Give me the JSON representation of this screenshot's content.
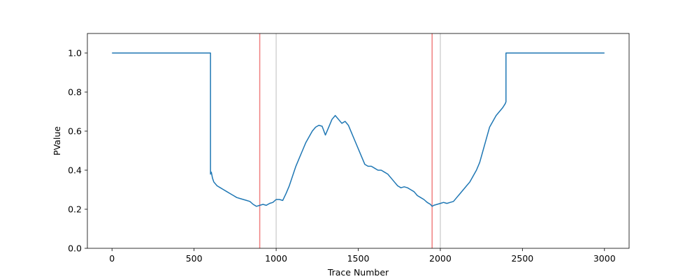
{
  "chart_data": {
    "type": "line",
    "title": "",
    "xlabel": "Trace Number",
    "ylabel": "PValue",
    "xlim": [
      -150,
      3150
    ],
    "ylim": [
      0.0,
      1.1
    ],
    "xticks": [
      0,
      500,
      1000,
      1500,
      2000,
      2500,
      3000
    ],
    "yticks": [
      0.0,
      0.2,
      0.4,
      0.6,
      0.8,
      1.0
    ],
    "xtick_labels": [
      "0",
      "500",
      "1000",
      "1500",
      "2000",
      "2500",
      "3000"
    ],
    "ytick_labels": [
      "0.0",
      "0.2",
      "0.4",
      "0.6",
      "0.8",
      "1.0"
    ],
    "grid": false,
    "colors": {
      "line": "#1f77b4",
      "red_marker": "#f08080",
      "grey_marker": "#d3d3d3"
    },
    "series": [
      {
        "x": [
          0,
          600,
          600,
          605,
          612,
          620,
          640,
          660,
          680,
          700,
          720,
          740,
          760,
          780,
          800,
          820,
          840,
          860,
          880,
          900,
          920,
          940,
          960,
          980,
          1000,
          1020,
          1040,
          1060,
          1080,
          1100,
          1120,
          1140,
          1160,
          1180,
          1200,
          1220,
          1240,
          1260,
          1280,
          1300,
          1320,
          1340,
          1360,
          1380,
          1400,
          1420,
          1440,
          1460,
          1480,
          1500,
          1520,
          1540,
          1560,
          1580,
          1600,
          1620,
          1640,
          1660,
          1680,
          1700,
          1720,
          1740,
          1760,
          1780,
          1800,
          1820,
          1840,
          1860,
          1880,
          1900,
          1920,
          1940,
          1950,
          1960,
          1980,
          2000,
          2020,
          2040,
          2060,
          2080,
          2100,
          2120,
          2140,
          2160,
          2180,
          2200,
          2220,
          2240,
          2260,
          2280,
          2300,
          2320,
          2340,
          2360,
          2380,
          2395,
          2400,
          2400,
          3000
        ],
        "y": [
          1.0,
          1.0,
          0.38,
          0.39,
          0.36,
          0.34,
          0.32,
          0.31,
          0.3,
          0.29,
          0.28,
          0.27,
          0.26,
          0.255,
          0.25,
          0.245,
          0.24,
          0.225,
          0.215,
          0.22,
          0.225,
          0.22,
          0.23,
          0.235,
          0.25,
          0.25,
          0.245,
          0.28,
          0.32,
          0.37,
          0.42,
          0.46,
          0.5,
          0.54,
          0.57,
          0.6,
          0.62,
          0.63,
          0.625,
          0.58,
          0.62,
          0.66,
          0.68,
          0.66,
          0.64,
          0.65,
          0.63,
          0.59,
          0.55,
          0.51,
          0.47,
          0.43,
          0.42,
          0.42,
          0.41,
          0.4,
          0.4,
          0.39,
          0.38,
          0.36,
          0.34,
          0.32,
          0.31,
          0.315,
          0.31,
          0.3,
          0.29,
          0.27,
          0.26,
          0.25,
          0.235,
          0.225,
          0.215,
          0.22,
          0.225,
          0.23,
          0.235,
          0.23,
          0.235,
          0.24,
          0.26,
          0.28,
          0.3,
          0.32,
          0.34,
          0.37,
          0.4,
          0.44,
          0.5,
          0.56,
          0.62,
          0.65,
          0.68,
          0.7,
          0.72,
          0.74,
          0.75,
          1.0,
          1.0
        ]
      }
    ],
    "vlines": [
      {
        "x": 900,
        "color": "red"
      },
      {
        "x": 1000,
        "color": "grey"
      },
      {
        "x": 1950,
        "color": "red"
      },
      {
        "x": 2000,
        "color": "grey"
      }
    ]
  }
}
